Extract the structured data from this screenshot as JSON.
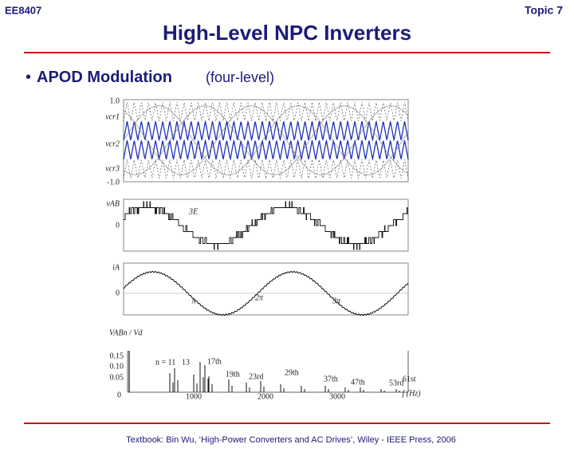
{
  "header": {
    "course": "EE8407",
    "topic": "Topic 7",
    "title": "High-Level NPC Inverters"
  },
  "bullet": {
    "symbol": "•",
    "heading": "APOD Modulation",
    "note": "(four-level)"
  },
  "figure": {
    "panel1": {
      "top": "1.0",
      "cr1": "vcr1",
      "cr2": "vcr2",
      "cr3": "vcr3",
      "bottom": "-1.0"
    },
    "panel2": {
      "label": "vAB",
      "zero": "0",
      "step": "3E"
    },
    "panel3": {
      "label": "iA",
      "zero": "0",
      "pi1": "π",
      "pi2": "2π",
      "pi3": "3π"
    },
    "panel4": {
      "label": "VABn / Vd",
      "y15": "0.15",
      "y10": "0.10",
      "y05": "0.05",
      "zero": "0",
      "x1": "1000",
      "x2": "2000",
      "x3": "3000",
      "xunit": "f (Hz)",
      "harmonics": [
        "n = 11",
        "13",
        "17th",
        "19th",
        "23rd",
        "29th",
        "37th",
        "47th",
        "53rd",
        "61st"
      ]
    }
  },
  "footer": "Textbook: Bin Wu, ‘High-Power Converters and AC Drives’, Wiley - IEEE Press, 2006"
}
